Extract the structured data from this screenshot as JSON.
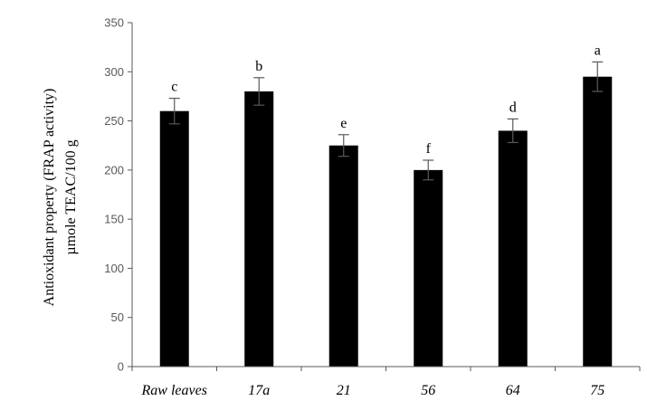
{
  "chart_data": {
    "type": "bar",
    "title": "",
    "xlabel": "",
    "ylabel_lines": [
      "Antioxidant property (FRAP activity)",
      "µmole TEAC/100 g"
    ],
    "categories": [
      "Raw leaves",
      "17a",
      "21",
      "56",
      "64",
      "75"
    ],
    "values": [
      260,
      280,
      225,
      200,
      240,
      295
    ],
    "errors": [
      13,
      14,
      11,
      10,
      12,
      15
    ],
    "significance_letters": [
      "c",
      "b",
      "e",
      "f",
      "d",
      "a"
    ],
    "ylim": [
      0,
      350
    ],
    "yticks": [
      0,
      50,
      100,
      150,
      200,
      250,
      300,
      350
    ],
    "grid": false,
    "bar_color": "#000000",
    "axis_color": "#595959"
  }
}
